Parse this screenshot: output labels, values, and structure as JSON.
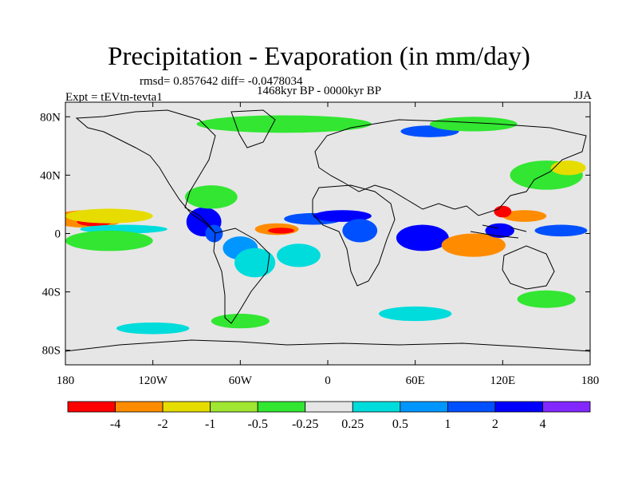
{
  "title": "Precipitation - Evaporation (in mm/day)",
  "stats": "rmsd= 0.857642 diff= -0.0478034",
  "experiment": "Expt = tEVtn-tevta1",
  "period": "1468kyr BP - 0000kyr BP",
  "season": "JJA",
  "colors": {
    "background_field": "#e6e6e6",
    "coast": "#000000"
  },
  "map": {
    "projection": "cylindrical-equidistant",
    "lon_range": [
      -180,
      180
    ],
    "lat_range": [
      -90,
      90
    ],
    "lat_ticks": [
      {
        "value": 80,
        "label": "80N"
      },
      {
        "value": 40,
        "label": "40N"
      },
      {
        "value": 0,
        "label": "0"
      },
      {
        "value": -40,
        "label": "40S"
      },
      {
        "value": -80,
        "label": "80S"
      }
    ],
    "lon_ticks": [
      {
        "value": -180,
        "label": "180"
      },
      {
        "value": -120,
        "label": "120W"
      },
      {
        "value": -60,
        "label": "60W"
      },
      {
        "value": 0,
        "label": "0"
      },
      {
        "value": 60,
        "label": "60E"
      },
      {
        "value": 120,
        "label": "120E"
      },
      {
        "value": 180,
        "label": "180"
      }
    ],
    "features": [
      {
        "name": "pacific-dry-band",
        "lon": -165,
        "lat": 10,
        "rlon": 25,
        "rlat": 6,
        "color": "#ff8c00"
      },
      {
        "name": "pacific-dry-core",
        "lon": -160,
        "lat": 8,
        "rlon": 12,
        "rlat": 3,
        "color": "#ff0000"
      },
      {
        "name": "pacific-yellow-band",
        "lon": -150,
        "lat": 12,
        "rlon": 30,
        "rlat": 5,
        "color": "#e6dc00"
      },
      {
        "name": "pacific-wet-strip",
        "lon": -140,
        "lat": 3,
        "rlon": 30,
        "rlat": 3,
        "color": "#00dcdc"
      },
      {
        "name": "pacific-south-green",
        "lon": -150,
        "lat": -5,
        "rlon": 30,
        "rlat": 7,
        "color": "#32e632"
      },
      {
        "name": "central-america-wet",
        "lon": -85,
        "lat": 8,
        "rlon": 12,
        "rlat": 10,
        "color": "#0000ff"
      },
      {
        "name": "central-america-wet2",
        "lon": -78,
        "lat": 0,
        "rlon": 6,
        "rlat": 6,
        "color": "#0050ff"
      },
      {
        "name": "caribbean-green",
        "lon": -80,
        "lat": 25,
        "rlon": 18,
        "rlat": 8,
        "color": "#32e632"
      },
      {
        "name": "amazon-wet",
        "lon": -60,
        "lat": -10,
        "rlon": 12,
        "rlat": 8,
        "color": "#0096ff"
      },
      {
        "name": "amazon-cyan",
        "lon": -50,
        "lat": -20,
        "rlon": 14,
        "rlat": 10,
        "color": "#00dcdc"
      },
      {
        "name": "atlantic-dry",
        "lon": -35,
        "lat": 3,
        "rlon": 15,
        "rlat": 4,
        "color": "#ff8c00"
      },
      {
        "name": "atlantic-dry-core",
        "lon": -32,
        "lat": 2,
        "rlon": 9,
        "rlat": 2,
        "color": "#ff0000"
      },
      {
        "name": "atlantic-wet-north",
        "lon": -10,
        "lat": 10,
        "rlon": 20,
        "rlat": 4,
        "color": "#0050ff"
      },
      {
        "name": "sahel-wet",
        "lon": 10,
        "lat": 12,
        "rlon": 20,
        "rlat": 4,
        "color": "#0000ff"
      },
      {
        "name": "africa-wet",
        "lon": 22,
        "lat": 2,
        "rlon": 12,
        "rlat": 8,
        "color": "#0050ff"
      },
      {
        "name": "south-atlantic-cyan",
        "lon": -20,
        "lat": -15,
        "rlon": 15,
        "rlat": 8,
        "color": "#00dcdc"
      },
      {
        "name": "indian-wet",
        "lon": 65,
        "lat": -3,
        "rlon": 18,
        "rlat": 9,
        "color": "#0000ff"
      },
      {
        "name": "indian-dry",
        "lon": 95,
        "lat": -10,
        "rlon": 15,
        "rlat": 5,
        "color": "#ff0000"
      },
      {
        "name": "indian-orange",
        "lon": 100,
        "lat": -8,
        "rlon": 22,
        "rlat": 8,
        "color": "#ff8c00"
      },
      {
        "name": "maritime-wet",
        "lon": 118,
        "lat": 2,
        "rlon": 10,
        "rlat": 5,
        "color": "#0000ff"
      },
      {
        "name": "west-pacific-dry",
        "lon": 135,
        "lat": 12,
        "rlon": 15,
        "rlat": 4,
        "color": "#ff8c00"
      },
      {
        "name": "west-pacific-red",
        "lon": 120,
        "lat": 15,
        "rlon": 6,
        "rlat": 4,
        "color": "#ff0000"
      },
      {
        "name": "west-pacific-wet",
        "lon": 160,
        "lat": 2,
        "rlon": 18,
        "rlat": 4,
        "color": "#0050ff"
      },
      {
        "name": "north-pacific-green",
        "lon": 150,
        "lat": 40,
        "rlon": 25,
        "rlat": 10,
        "color": "#32e632"
      },
      {
        "name": "north-pacific-yellow",
        "lon": 165,
        "lat": 45,
        "rlon": 12,
        "rlat": 5,
        "color": "#e6dc00"
      },
      {
        "name": "arctic-green",
        "lon": -30,
        "lat": 75,
        "rlon": 60,
        "rlat": 6,
        "color": "#32e632"
      },
      {
        "name": "arctic-blue",
        "lon": 70,
        "lat": 70,
        "rlon": 20,
        "rlat": 4,
        "color": "#0050ff"
      },
      {
        "name": "siberia-green",
        "lon": 100,
        "lat": 75,
        "rlon": 30,
        "rlat": 5,
        "color": "#32e632"
      },
      {
        "name": "southern-cyan",
        "lon": -120,
        "lat": -65,
        "rlon": 25,
        "rlat": 4,
        "color": "#00dcdc"
      },
      {
        "name": "southern-green",
        "lon": -60,
        "lat": -60,
        "rlon": 20,
        "rlat": 5,
        "color": "#32e632"
      },
      {
        "name": "south-indian-cyan",
        "lon": 60,
        "lat": -55,
        "rlon": 25,
        "rlat": 5,
        "color": "#00dcdc"
      },
      {
        "name": "south-pacific-green",
        "lon": 150,
        "lat": -45,
        "rlon": 20,
        "rlat": 6,
        "color": "#32e632"
      }
    ]
  },
  "colorbar": {
    "colors": [
      "#ff0000",
      "#ff8c00",
      "#e6dc00",
      "#a0e632",
      "#32e632",
      "#e6e6e6",
      "#00dcdc",
      "#0096ff",
      "#0050ff",
      "#0000ff",
      "#8228ff"
    ],
    "labels": [
      "-4",
      "-2",
      "-1",
      "-0.5",
      "-0.25",
      "0.25",
      "0.5",
      "1",
      "2",
      "4"
    ]
  }
}
